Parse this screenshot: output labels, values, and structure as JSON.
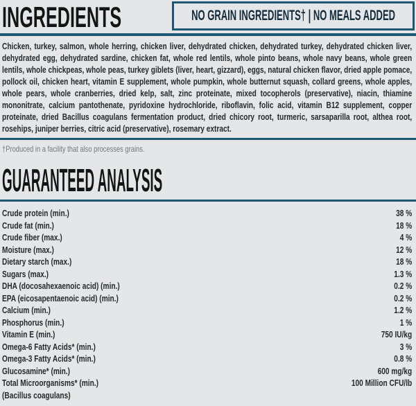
{
  "page": {
    "background_color": "#e5e6e7",
    "accent_color": "#1d5872",
    "text_color": "#26292b",
    "muted_color": "#73777b"
  },
  "header": {
    "title": "INGREDIENTS",
    "badge": "NO GRAIN INGREDIENTS† | NO MEALS ADDED"
  },
  "ingredients": {
    "text": "Chicken, turkey, salmon, whole herring, chicken liver, dehydrated chicken, dehydrated turkey, dehydrated chicken liver, dehydrated egg, dehydrated sardine, chicken fat, whole red lentils, whole pinto beans, whole navy beans, whole green lentils, whole chickpeas, whole peas, turkey giblets (liver, heart, gizzard), eggs, natural chicken flavor, dried apple pomace, pollock oil, chicken heart, vitamin E supplement, whole pumpkin, whole butternut squash, collard greens, whole apples, whole pears, whole cranberries, dried kelp, salt, zinc proteinate, mixed tocopherols (preservative), niacin, thiamine mononitrate, calcium pantothenate, pyridoxine hydrochloride, riboflavin, folic acid, vitamin B12 supplement, copper proteinate, dried Bacillus coagulans fermentation product, dried chicory root, turmeric, sarsaparilla root, althea root, rosehips, juniper berries, citric acid (preservative), rosemary extract.",
    "footnote": "†Produced in a facility that also processes grains."
  },
  "guaranteed_analysis": {
    "title": "GUARANTEED ANALYSIS",
    "rows": [
      {
        "label": "Crude protein (min.)",
        "value": "38 %"
      },
      {
        "label": "Crude fat (min.)",
        "value": "18 %"
      },
      {
        "label": "Crude fiber (max.)",
        "value": "4 %"
      },
      {
        "label": "Moisture (max.)",
        "value": "12 %"
      },
      {
        "label": "Dietary starch (max.)",
        "value": "18 %"
      },
      {
        "label": "Sugars (max.)",
        "value": "1.3 %"
      },
      {
        "label": "DHA (docosahexaenoic acid) (min.)",
        "value": "0.2 %"
      },
      {
        "label": "EPA (eicosapentaenoic acid) (min.)",
        "value": "0.2 %"
      },
      {
        "label": "Calcium (min.)",
        "value": "1.2 %"
      },
      {
        "label": "Phosphorus (min.)",
        "value": "1 %"
      },
      {
        "label": "Vitamin E (min.)",
        "value": "750 IU/kg"
      },
      {
        "label": "Omega-6 Fatty Acids* (min.)",
        "value": "3 %"
      },
      {
        "label": "Omega-3 Fatty Acids* (min.)",
        "value": "0.8 %"
      },
      {
        "label": "Glucosamine* (min.)",
        "value": "600 mg/kg"
      },
      {
        "label": "Total Microorganisms* (min.)",
        "value": "100 Million CFU/lb"
      },
      {
        "label": "(Bacillus coagulans)",
        "value": ""
      }
    ]
  }
}
